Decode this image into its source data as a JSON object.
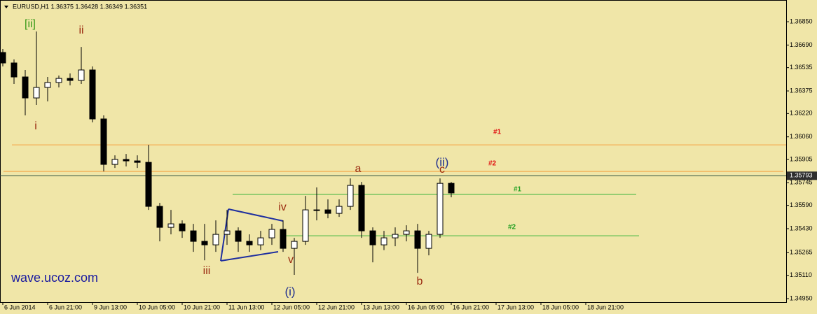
{
  "chart_data": {
    "type": "candlestick",
    "title": "EURUSD,H1  1.36375 1.36428 1.36349 1.36351",
    "x": [
      0,
      4,
      8,
      12,
      16,
      20,
      24,
      28,
      32,
      36,
      40,
      44,
      48,
      52,
      56,
      60,
      64,
      68,
      72,
      76,
      80,
      84,
      88,
      92,
      96,
      100,
      104,
      108,
      112,
      116,
      120,
      124,
      128,
      132,
      136,
      140,
      144,
      148,
      152,
      156,
      160
    ],
    "open": [
      1.36639,
      1.36567,
      1.36471,
      1.36327,
      1.36399,
      1.36433,
      1.36461,
      1.36447,
      1.36519,
      1.36183,
      1.35871,
      1.35905,
      1.35895,
      1.35885,
      1.35583,
      1.35439,
      1.35463,
      1.35415,
      1.35343,
      1.35319,
      1.35391,
      1.35415,
      1.35343,
      1.35319,
      1.35367,
      1.35425,
      1.35295,
      1.35343,
      1.35559,
      1.35559,
      1.35535,
      1.35583,
      1.35727,
      1.35415,
      1.35319,
      1.35367,
      1.35391,
      1.35415,
      1.35295,
      1.35391,
      1.35741
    ],
    "high": [
      1.36663,
      1.36591,
      1.36519,
      1.36783,
      1.36471,
      1.36481,
      1.36495,
      1.36677,
      1.36543,
      1.36207,
      1.35933,
      1.35943,
      1.35933,
      1.36005,
      1.35607,
      1.35559,
      1.35487,
      1.35463,
      1.35463,
      1.35487,
      1.35559,
      1.35439,
      1.35391,
      1.35415,
      1.35463,
      1.35487,
      1.35367,
      1.35655,
      1.35713,
      1.35631,
      1.35631,
      1.35775,
      1.35751,
      1.35439,
      1.35415,
      1.35439,
      1.35453,
      1.35463,
      1.35415,
      1.35775,
      1.35751
    ],
    "low": [
      1.36543,
      1.36423,
      1.36207,
      1.36279,
      1.36303,
      1.36399,
      1.36413,
      1.36423,
      1.36159,
      1.35823,
      1.35847,
      1.35857,
      1.35847,
      1.35559,
      1.35343,
      1.35391,
      1.35367,
      1.35271,
      1.35213,
      1.35271,
      1.35319,
      1.35271,
      1.35271,
      1.35283,
      1.35319,
      1.35271,
      1.35113,
      1.35319,
      1.35487,
      1.35501,
      1.35511,
      1.35559,
      1.35367,
      1.35199,
      1.35283,
      1.35309,
      1.35343,
      1.35127,
      1.35247,
      1.35367,
      1.35645
    ],
    "close": [
      1.36567,
      1.36471,
      1.36327,
      1.36399,
      1.36433,
      1.36461,
      1.36447,
      1.36519,
      1.36183,
      1.35871,
      1.35905,
      1.35895,
      1.35885,
      1.35583,
      1.35439,
      1.35463,
      1.35415,
      1.35343,
      1.35319,
      1.35391,
      1.35415,
      1.35343,
      1.35319,
      1.35367,
      1.35425,
      1.35295,
      1.35343,
      1.35559,
      1.35559,
      1.35535,
      1.35583,
      1.35727,
      1.35415,
      1.35319,
      1.35367,
      1.35391,
      1.35415,
      1.35295,
      1.35391,
      1.35741,
      1.35675
    ],
    "xlim": [
      -1,
      279.5
    ],
    "xticks": [
      {
        "value": 0,
        "label": "6 Jun 2014"
      },
      {
        "value": 16,
        "label": "6 Jun 21:00"
      },
      {
        "value": 32,
        "label": "9 Jun 13:00"
      },
      {
        "value": 48,
        "label": "10 Jun 05:00"
      },
      {
        "value": 64,
        "label": "10 Jun 21:00"
      },
      {
        "value": 80,
        "label": "11 Jun 13:00"
      },
      {
        "value": 96,
        "label": "12 Jun 05:00"
      },
      {
        "value": 112,
        "label": "12 Jun 21:00"
      },
      {
        "value": 128,
        "label": "13 Jun 13:00"
      },
      {
        "value": 144,
        "label": "16 Jun 05:00"
      },
      {
        "value": 160,
        "label": "16 Jun 21:00"
      },
      {
        "value": 176,
        "label": "17 Jun 13:00"
      },
      {
        "value": 192,
        "label": "18 Jun 05:00"
      },
      {
        "value": 208,
        "label": "18 Jun 21:00"
      }
    ],
    "ylim": [
      1.34926,
      1.36999
    ],
    "yticks": [
      {
        "value": 1.3685,
        "label": "1.36850"
      },
      {
        "value": 1.3669,
        "label": "1.36690"
      },
      {
        "value": 1.36535,
        "label": "1.36535"
      },
      {
        "value": 1.36375,
        "label": "1.36375"
      },
      {
        "value": 1.3622,
        "label": "1.36220"
      },
      {
        "value": 1.3606,
        "label": "1.36060"
      },
      {
        "value": 1.35905,
        "label": "1.35905"
      },
      {
        "value": 1.35745,
        "label": "1.35745"
      },
      {
        "value": 1.3559,
        "label": "1.35590"
      },
      {
        "value": 1.3543,
        "label": "1.35430"
      },
      {
        "value": 1.35265,
        "label": "1.35265"
      },
      {
        "value": 1.3511,
        "label": "1.35110"
      },
      {
        "value": 1.3495,
        "label": "1.34950"
      }
    ],
    "current_price": 1.35793,
    "bull_color": "#ffffff",
    "bear_color": "#000000",
    "levels": [
      {
        "label": "#1",
        "value": 1.36005,
        "color": "#f5a040",
        "label_color": "#e01010"
      },
      {
        "label": "#2",
        "value": 1.35823,
        "color": "#f5a040",
        "label_color": "#e01010"
      },
      {
        "label": "#1",
        "value": 1.35665,
        "color": "#3cb43c",
        "label_color": "#22a022"
      },
      {
        "label": "#2",
        "value": 1.35381,
        "color": "#3cb43c",
        "label_color": "#22a022"
      }
    ],
    "annotations": [
      {
        "text": "[ii]",
        "color": "#3a9a1a"
      },
      {
        "text": "ii",
        "color": "#9a2a10"
      },
      {
        "text": "i",
        "color": "#9a2a10"
      },
      {
        "text": "iii",
        "color": "#9a2a10"
      },
      {
        "text": "iv",
        "color": "#9a2a10"
      },
      {
        "text": "v",
        "color": "#9a2a10"
      },
      {
        "text": "(i)",
        "color": "#1f2f8f"
      },
      {
        "text": "a",
        "color": "#9a2a10"
      },
      {
        "text": "(ii)",
        "color": "#1f2f8f"
      },
      {
        "text": "c",
        "color": "#9a2a10"
      },
      {
        "text": "b",
        "color": "#9a2a10"
      }
    ],
    "watermark": "wave.ucoz.com"
  }
}
